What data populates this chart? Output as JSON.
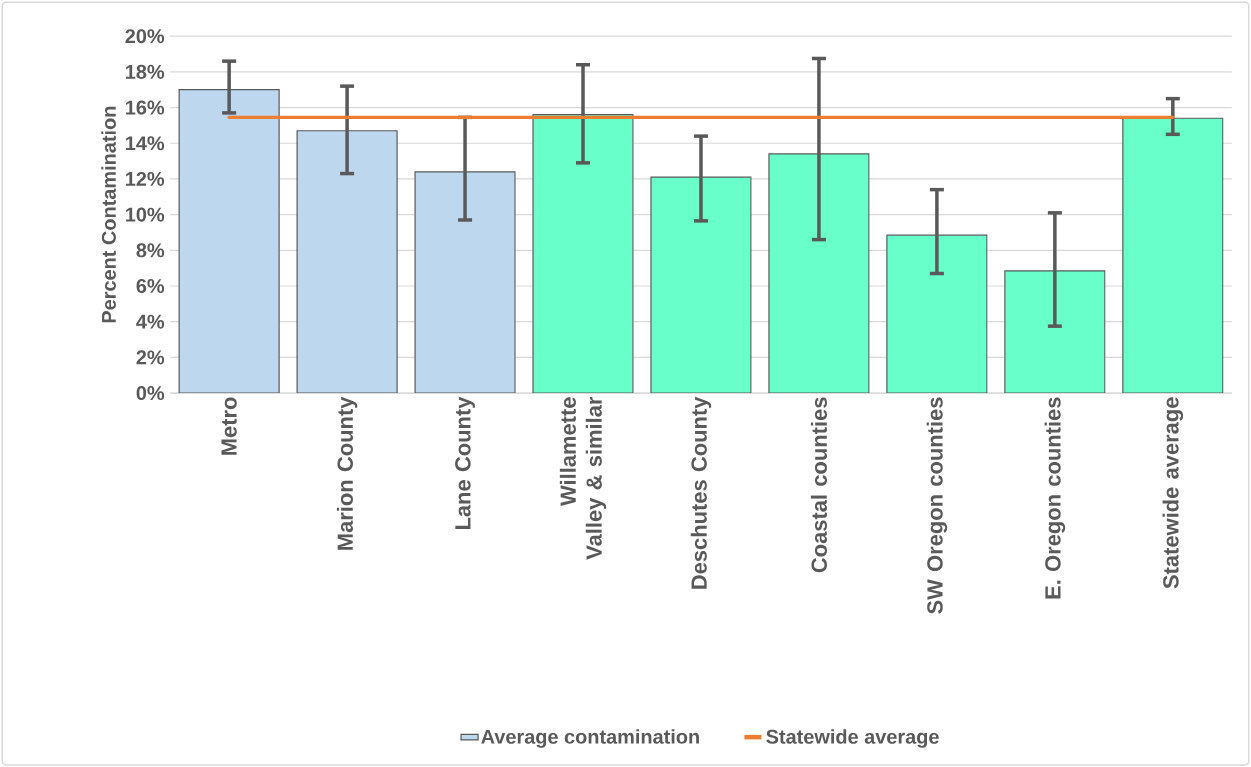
{
  "chart_data": {
    "type": "bar",
    "ylabel": "Percent Contamination",
    "categories": [
      "Metro",
      "Marion County",
      "Lane County",
      "Willamette Valley & similar",
      "Deschutes County",
      "Coastal counties",
      "SW Oregon counties",
      "E. Oregon counties",
      "Statewide average"
    ],
    "series": [
      {
        "name": "Average contamination",
        "color": "#bdd7ee",
        "colors": [
          "#bdd7ee",
          "#bdd7ee",
          "#bdd7ee",
          "#69ffca",
          "#69ffca",
          "#69ffca",
          "#69ffca",
          "#69ffca",
          "#69ffca"
        ],
        "values": [
          17.0,
          14.7,
          12.4,
          15.6,
          12.1,
          13.4,
          8.85,
          6.85,
          15.4
        ],
        "errors": [
          [
            15.7,
            18.6
          ],
          [
            12.3,
            17.2
          ],
          [
            9.7,
            15.45
          ],
          [
            12.9,
            18.4
          ],
          [
            9.65,
            14.4
          ],
          [
            8.6,
            18.75
          ],
          [
            6.7,
            11.4
          ],
          [
            3.75,
            10.1
          ],
          [
            14.5,
            16.5
          ]
        ]
      },
      {
        "name": "Statewide average",
        "type": "line",
        "color": "#ed7d31",
        "values": [
          15.45,
          15.45,
          15.45,
          15.45,
          15.45,
          15.45,
          15.45,
          15.45,
          15.45
        ]
      }
    ],
    "ylim": [
      0,
      20
    ],
    "yticks": [
      {
        "value": 0,
        "label": "0%"
      },
      {
        "value": 2,
        "label": "2%"
      },
      {
        "value": 4,
        "label": "4%"
      },
      {
        "value": 6,
        "label": "6%"
      },
      {
        "value": 8,
        "label": "8%"
      },
      {
        "value": 10,
        "label": "10%"
      },
      {
        "value": 12,
        "label": "12%"
      },
      {
        "value": 14,
        "label": "14%"
      },
      {
        "value": 16,
        "label": "16%"
      },
      {
        "value": 18,
        "label": "18%"
      },
      {
        "value": 20,
        "label": "20%"
      }
    ],
    "grid": "y",
    "legend": "bottom",
    "marker": "none"
  }
}
